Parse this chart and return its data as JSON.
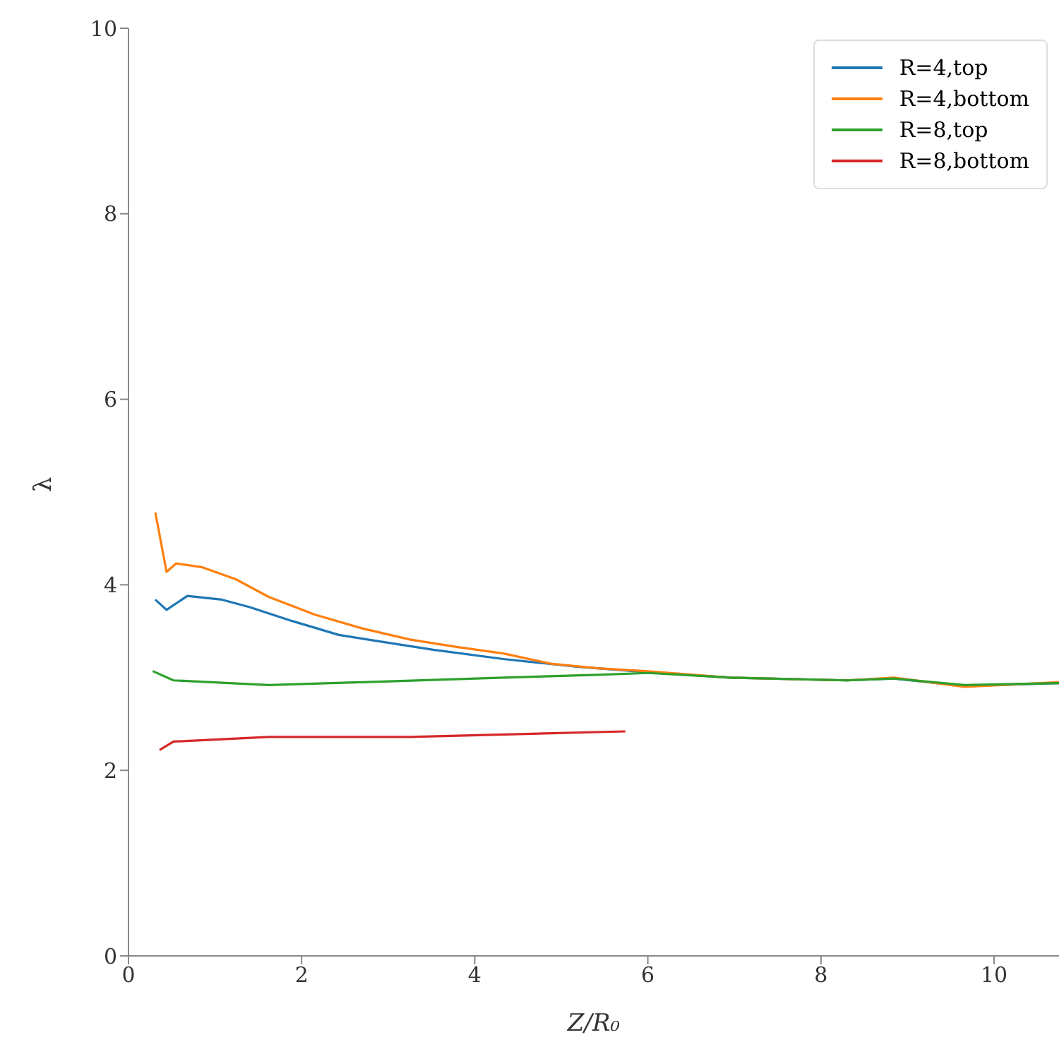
{
  "chart_data": {
    "type": "line",
    "xlabel": "Z/R₀",
    "ylabel": "λ",
    "xlim": [
      0,
      10.75
    ],
    "ylim": [
      0,
      10
    ],
    "xticks": [
      0,
      2,
      4,
      6,
      8,
      10
    ],
    "yticks": [
      0,
      2,
      4,
      6,
      8,
      10
    ],
    "grid": false,
    "legend": "top right",
    "marker": "none",
    "line_style": "solid",
    "series": [
      {
        "name": "R=4,top",
        "color": "#1f77b4",
        "x": [
          0.31,
          0.44,
          0.68,
          1.08,
          1.4,
          1.89,
          2.43,
          2.97,
          3.52,
          4.33,
          5.15,
          5.97,
          6.95,
          8.3,
          8.84,
          9.66,
          10.75
        ],
        "values": [
          3.84,
          3.73,
          3.88,
          3.84,
          3.76,
          3.61,
          3.46,
          3.38,
          3.3,
          3.2,
          3.12,
          3.06,
          3.0,
          2.97,
          2.99,
          2.91,
          2.94
        ]
      },
      {
        "name": "R=4,bottom",
        "color": "#ff7f0e",
        "x": [
          0.31,
          0.44,
          0.55,
          0.85,
          1.24,
          1.62,
          2.15,
          2.7,
          3.25,
          3.79,
          4.33,
          4.88,
          5.42,
          5.97,
          6.95,
          8.3,
          8.84,
          9.66,
          10.75
        ],
        "values": [
          4.78,
          4.14,
          4.23,
          4.19,
          4.06,
          3.87,
          3.68,
          3.53,
          3.41,
          3.33,
          3.26,
          3.15,
          3.1,
          3.07,
          3.0,
          2.97,
          3.0,
          2.9,
          2.95
        ]
      },
      {
        "name": "R=8,top",
        "color": "#2ca02c",
        "x": [
          0.28,
          0.52,
          1.62,
          2.7,
          4.33,
          5.42,
          6.0,
          6.95,
          8.3,
          8.84,
          9.66,
          10.75
        ],
        "values": [
          3.07,
          2.97,
          2.92,
          2.95,
          3.0,
          3.03,
          3.05,
          3.0,
          2.97,
          2.99,
          2.92,
          2.94
        ]
      },
      {
        "name": "R=8,bottom",
        "color": "#d62728",
        "x": [
          0.36,
          0.52,
          1.62,
          3.25,
          5.74
        ],
        "values": [
          2.22,
          2.31,
          2.36,
          2.36,
          2.42
        ]
      }
    ]
  }
}
